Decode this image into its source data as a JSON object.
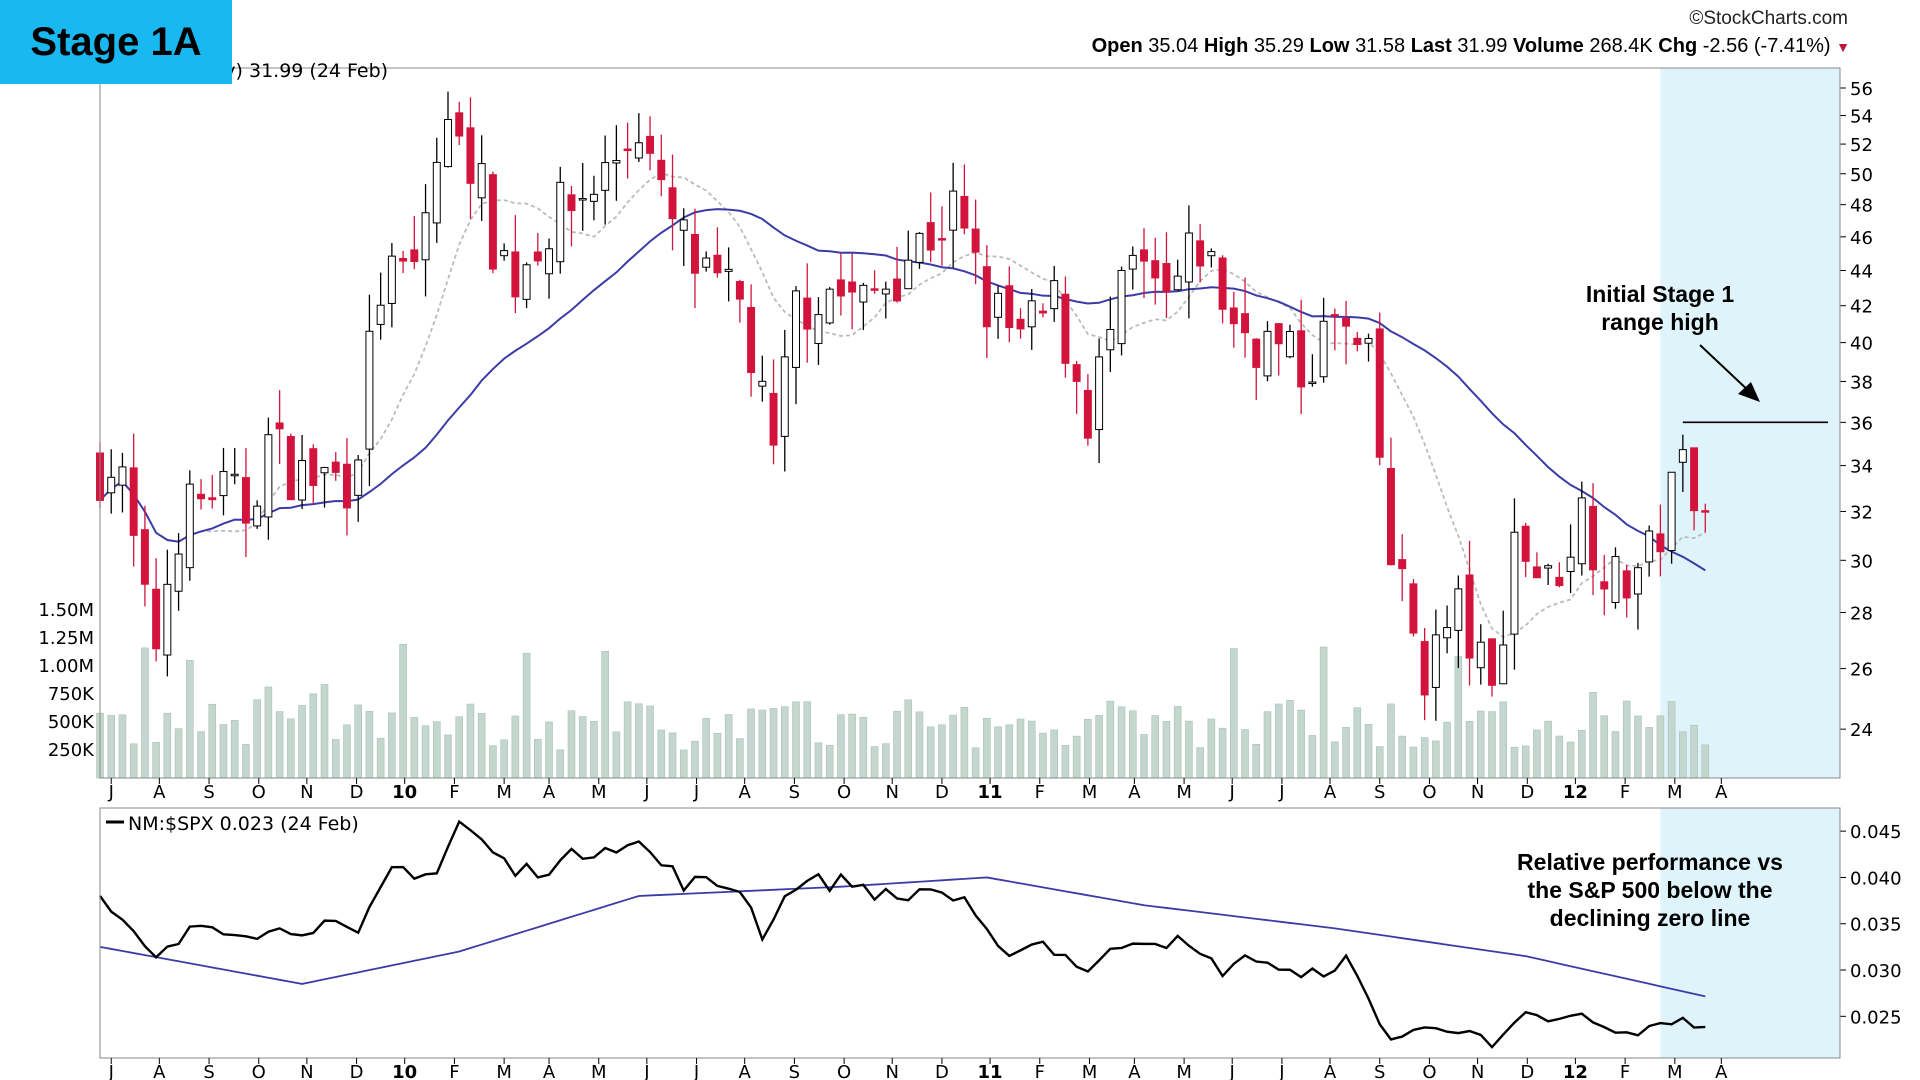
{
  "badge": "Stage 1A",
  "watermark": "©StockCharts.com",
  "quote": {
    "open_label": "Open",
    "open": "35.04",
    "high_label": "High",
    "high": "35.29",
    "low_label": "Low",
    "low": "31.58",
    "last_label": "Last",
    "last": "31.99",
    "volume_label": "Volume",
    "volume": "268.4K",
    "chg_label": "Chg",
    "chg": "-2.56 (-7.41%)",
    "chg_arrow": "▼"
  },
  "price_title": "kly) 31.99 (24 Feb)",
  "rs_title": "NM:$SPX 0.023 (24 Feb)",
  "annotations": {
    "range_high": [
      "Initial Stage 1",
      "range high"
    ],
    "relative": [
      "Relative performance vs",
      "the S&P 500 below the",
      "declining zero line"
    ]
  },
  "colors": {
    "up_candle": "#ffffff",
    "down_candle": "#d2143c",
    "candle_edge": "#000000",
    "volume": "#c4d7ce",
    "ma_long": "#3c3ca8",
    "ma_short": "#bbbbbb",
    "rs_line": "#000000",
    "highlight": "#dff3fb",
    "badge": "#19b8f0",
    "chg_arrow": "#c0143c"
  },
  "chart_data": [
    {
      "type": "candlestick",
      "title": "kly) 31.99 (24 Feb)",
      "y_scale": "log",
      "ylim": [
        22.5,
        57.5
      ],
      "y_ticks": [
        "24",
        "26",
        "28",
        "30",
        "32",
        "34",
        "36",
        "38",
        "40",
        "42",
        "44",
        "46",
        "48",
        "50",
        "52",
        "54",
        "56"
      ],
      "x_ticks": [
        "J",
        "A",
        "S",
        "O",
        "N",
        "D",
        "10",
        "F",
        "M",
        "A",
        "M",
        "J",
        "J",
        "A",
        "S",
        "O",
        "N",
        "D",
        "11",
        "F",
        "M",
        "A",
        "M",
        "J",
        "J",
        "A",
        "S",
        "O",
        "N",
        "D",
        "12",
        "F",
        "M",
        "A"
      ],
      "x_range": [
        "2009-05-25",
        "2012-05-14"
      ],
      "volume_ticks": [
        "1.50M",
        "1.25M",
        "1.00M",
        "750K",
        "500K",
        "250K"
      ],
      "volume_max": 1.9,
      "anchors": [
        [
          "2009-06-01",
          34
        ],
        [
          "2009-06-08",
          33
        ],
        [
          "2009-06-22",
          28
        ],
        [
          "2009-06-29",
          27
        ],
        [
          "2009-07-13",
          31.5
        ],
        [
          "2009-08-03",
          33
        ],
        [
          "2009-08-24",
          32
        ],
        [
          "2009-09-07",
          35
        ],
        [
          "2009-09-28",
          33.5
        ],
        [
          "2009-10-26",
          33.5
        ],
        [
          "2009-11-02",
          35.5
        ],
        [
          "2009-11-16",
          43
        ],
        [
          "2009-12-07",
          44
        ],
        [
          "2009-12-21",
          51
        ],
        [
          "2010-01-04",
          54
        ],
        [
          "2010-01-25",
          46
        ],
        [
          "2010-02-08",
          43.5
        ],
        [
          "2010-02-22",
          46
        ],
        [
          "2010-03-15",
          48
        ],
        [
          "2010-04-05",
          50
        ],
        [
          "2010-04-26",
          53.5
        ],
        [
          "2010-05-10",
          48
        ],
        [
          "2010-06-07",
          43
        ],
        [
          "2010-06-28",
          42
        ],
        [
          "2010-07-19",
          34
        ],
        [
          "2010-08-02",
          42
        ],
        [
          "2010-08-23",
          43
        ],
        [
          "2010-09-13",
          42
        ],
        [
          "2010-10-11",
          45
        ],
        [
          "2010-11-08",
          47.5
        ],
        [
          "2010-11-29",
          42
        ],
        [
          "2010-12-20",
          40
        ],
        [
          "2011-01-10",
          42
        ],
        [
          "2011-01-31",
          36.5
        ],
        [
          "2011-02-28",
          44
        ],
        [
          "2011-03-21",
          42
        ],
        [
          "2011-04-11",
          45.5
        ],
        [
          "2011-05-02",
          41
        ],
        [
          "2011-05-23",
          40
        ],
        [
          "2011-06-13",
          38.5
        ],
        [
          "2011-07-04",
          41
        ],
        [
          "2011-07-25",
          38.5
        ],
        [
          "2011-08-08",
          30
        ],
        [
          "2011-08-29",
          26
        ],
        [
          "2011-09-19",
          28
        ],
        [
          "2011-10-10",
          25
        ],
        [
          "2011-10-24",
          31
        ],
        [
          "2011-11-14",
          29
        ],
        [
          "2011-12-05",
          32
        ],
        [
          "2011-12-26",
          29
        ],
        [
          "2012-01-16",
          30
        ],
        [
          "2012-02-06",
          34
        ],
        [
          "2012-02-20",
          33
        ]
      ],
      "last_bar": {
        "date": "2012-02-24",
        "open": 35.04,
        "high": 35.29,
        "low": 31.58,
        "close": 31.99,
        "volume": "268.4K"
      },
      "annotation_level": 36,
      "highlight_range": [
        "2012-01-23",
        "2012-05-14"
      ]
    },
    {
      "type": "line",
      "title": "NM:$SPX 0.023 (24 Feb)",
      "ylim": [
        0.0205,
        0.0475
      ],
      "y_ticks": [
        "0.025",
        "0.030",
        "0.035",
        "0.040",
        "0.045"
      ],
      "x_range": [
        "2009-05-25",
        "2012-05-14"
      ],
      "rs_anchors": [
        [
          "2009-05-25",
          0.0375
        ],
        [
          "2009-06-29",
          0.031
        ],
        [
          "2009-07-27",
          0.035
        ],
        [
          "2009-09-07",
          0.034
        ],
        [
          "2009-10-12",
          0.035
        ],
        [
          "2009-11-02",
          0.0335
        ],
        [
          "2009-11-23",
          0.041
        ],
        [
          "2009-12-21",
          0.0405
        ],
        [
          "2010-01-04",
          0.046
        ],
        [
          "2010-02-08",
          0.0405
        ],
        [
          "2010-03-08",
          0.0415
        ],
        [
          "2010-04-05",
          0.0438
        ],
        [
          "2010-04-26",
          0.0435
        ],
        [
          "2010-05-24",
          0.0395
        ],
        [
          "2010-06-28",
          0.039
        ],
        [
          "2010-07-12",
          0.034
        ],
        [
          "2010-08-02",
          0.0395
        ],
        [
          "2010-09-06",
          0.0395
        ],
        [
          "2010-10-04",
          0.0375
        ],
        [
          "2010-10-25",
          0.039
        ],
        [
          "2010-11-15",
          0.037
        ],
        [
          "2010-12-06",
          0.032
        ],
        [
          "2011-01-03",
          0.033
        ],
        [
          "2011-01-31",
          0.03
        ],
        [
          "2011-02-28",
          0.0335
        ],
        [
          "2011-03-28",
          0.033
        ],
        [
          "2011-04-25",
          0.03
        ],
        [
          "2011-05-16",
          0.0315
        ],
        [
          "2011-06-13",
          0.029
        ],
        [
          "2011-07-11",
          0.031
        ],
        [
          "2011-08-08",
          0.0225
        ],
        [
          "2011-09-05",
          0.024
        ],
        [
          "2011-09-26",
          0.0235
        ],
        [
          "2011-10-10",
          0.0215
        ],
        [
          "2011-10-31",
          0.025
        ],
        [
          "2011-11-21",
          0.0245
        ],
        [
          "2011-12-05",
          0.025
        ],
        [
          "2011-12-26",
          0.023
        ],
        [
          "2012-01-16",
          0.0235
        ],
        [
          "2012-02-06",
          0.025
        ],
        [
          "2012-02-24",
          0.023
        ]
      ],
      "ma_anchors": [
        [
          "2009-05-25",
          0.0325
        ],
        [
          "2009-09-28",
          0.0285
        ],
        [
          "2010-01-04",
          0.032
        ],
        [
          "2010-04-26",
          0.038
        ],
        [
          "2010-08-30",
          0.039
        ],
        [
          "2010-11-29",
          0.04
        ],
        [
          "2011-03-07",
          0.037
        ],
        [
          "2011-07-04",
          0.0345
        ],
        [
          "2011-10-31",
          0.0315
        ],
        [
          "2012-02-24",
          0.027
        ]
      ]
    }
  ]
}
